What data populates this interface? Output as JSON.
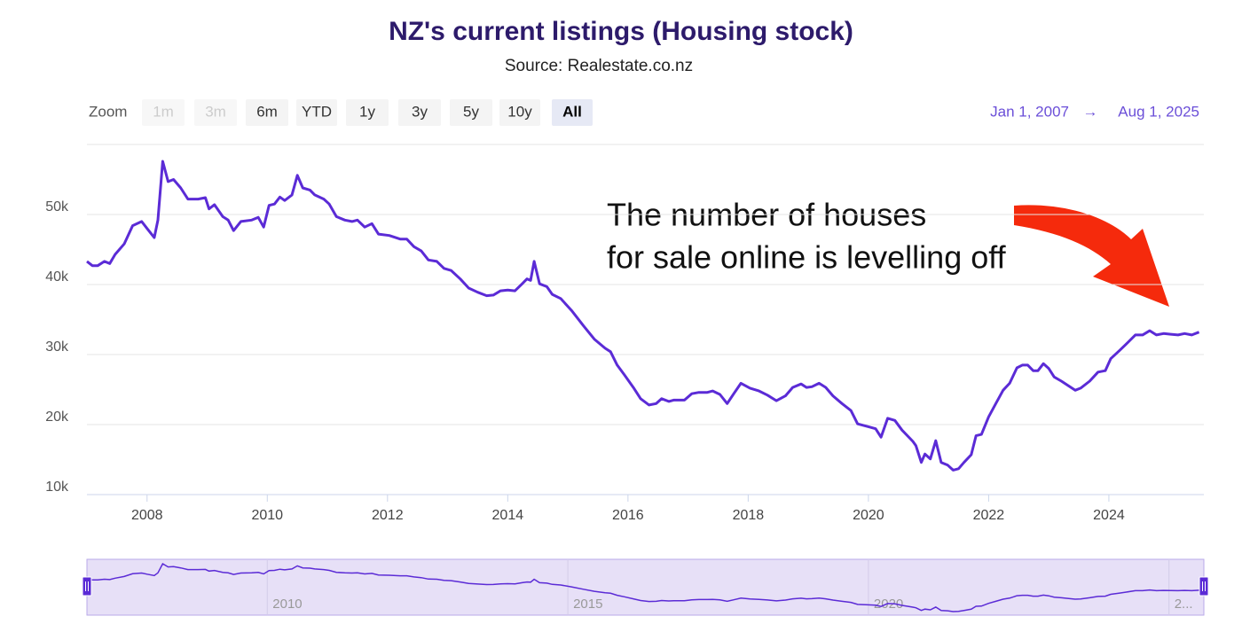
{
  "chart_data": {
    "type": "line",
    "title": "NZ's current listings (Housing stock)",
    "subtitle": "Source: Realestate.co.nz",
    "zoom": {
      "label": "Zoom",
      "buttons": [
        {
          "text": "1m",
          "enabled": false,
          "active": false
        },
        {
          "text": "3m",
          "enabled": false,
          "active": false
        },
        {
          "text": "6m",
          "enabled": true,
          "active": false
        },
        {
          "text": "YTD",
          "enabled": true,
          "active": false
        },
        {
          "text": "1y",
          "enabled": true,
          "active": false
        },
        {
          "text": "3y",
          "enabled": true,
          "active": false
        },
        {
          "text": "5y",
          "enabled": true,
          "active": false
        },
        {
          "text": "10y",
          "enabled": true,
          "active": false
        },
        {
          "text": "All",
          "enabled": true,
          "active": true
        }
      ]
    },
    "range": {
      "start": "Jan 1, 2007",
      "arrow": "→",
      "end": "Aug 1, 2025"
    },
    "annotation": [
      "The number of houses",
      "for sale online is levelling off"
    ],
    "color": "#5b2bd6",
    "x": [
      2007.0,
      2007.09,
      2007.18,
      2007.29,
      2007.38,
      2007.47,
      2007.62,
      2007.76,
      2007.91,
      2008.0,
      2008.12,
      2008.18,
      2008.26,
      2008.35,
      2008.44,
      2008.56,
      2008.68,
      2008.85,
      2008.97,
      2009.03,
      2009.12,
      2009.26,
      2009.35,
      2009.44,
      2009.56,
      2009.74,
      2009.85,
      2009.94,
      2010.03,
      2010.12,
      2010.21,
      2010.29,
      2010.41,
      2010.5,
      2010.59,
      2010.71,
      2010.79,
      2010.94,
      2011.03,
      2011.15,
      2011.29,
      2011.41,
      2011.5,
      2011.62,
      2011.74,
      2011.85,
      2012.03,
      2012.21,
      2012.32,
      2012.44,
      2012.56,
      2012.68,
      2012.82,
      2012.94,
      2013.06,
      2013.21,
      2013.35,
      2013.5,
      2013.65,
      2013.76,
      2013.88,
      2014.0,
      2014.12,
      2014.24,
      2014.32,
      2014.38,
      2014.44,
      2014.53,
      2014.65,
      2014.74,
      2014.88,
      2015.06,
      2015.26,
      2015.44,
      2015.62,
      2015.71,
      2015.82,
      2015.94,
      2016.09,
      2016.21,
      2016.35,
      2016.47,
      2016.56,
      2016.68,
      2016.76,
      2016.94,
      2017.06,
      2017.18,
      2017.32,
      2017.41,
      2017.53,
      2017.65,
      2017.76,
      2017.88,
      2018.03,
      2018.18,
      2018.32,
      2018.47,
      2018.62,
      2018.74,
      2018.88,
      2018.97,
      2019.06,
      2019.18,
      2019.29,
      2019.41,
      2019.56,
      2019.71,
      2019.82,
      2020.0,
      2020.12,
      2020.21,
      2020.32,
      2020.44,
      2020.56,
      2020.74,
      2020.79,
      2020.88,
      2020.94,
      2021.03,
      2021.12,
      2021.21,
      2021.32,
      2021.41,
      2021.5,
      2021.59,
      2021.71,
      2021.79,
      2021.88,
      2022.0,
      2022.12,
      2022.24,
      2022.35,
      2022.47,
      2022.56,
      2022.65,
      2022.74,
      2022.82,
      2022.91,
      2023.0,
      2023.09,
      2023.21,
      2023.35,
      2023.44,
      2023.53,
      2023.68,
      2023.82,
      2023.94,
      2024.03,
      2024.18,
      2024.29,
      2024.44,
      2024.56,
      2024.68,
      2024.79,
      2024.91,
      2025.03,
      2025.15,
      2025.26,
      2025.38,
      2025.5
    ],
    "values": [
      43300,
      42700,
      42700,
      43300,
      43000,
      44300,
      45800,
      48400,
      49000,
      48000,
      46700,
      49200,
      57600,
      54700,
      55000,
      53800,
      52200,
      52200,
      52400,
      50800,
      51400,
      49700,
      49200,
      47700,
      49000,
      49200,
      49600,
      48200,
      51300,
      51500,
      52500,
      52000,
      52800,
      55600,
      53800,
      53500,
      52800,
      52200,
      51500,
      49700,
      49200,
      49000,
      49200,
      48200,
      48700,
      47200,
      47000,
      46500,
      46500,
      45400,
      44800,
      43500,
      43300,
      42300,
      42000,
      40800,
      39500,
      38900,
      38400,
      38500,
      39100,
      39200,
      39100,
      40100,
      40800,
      40600,
      43300,
      40100,
      39700,
      38600,
      38000,
      36300,
      34100,
      32200,
      30900,
      30400,
      28500,
      27100,
      25300,
      23700,
      22800,
      23000,
      23700,
      23300,
      23500,
      23500,
      24400,
      24600,
      24600,
      24800,
      24300,
      23000,
      24400,
      25900,
      25200,
      24800,
      24200,
      23400,
      24100,
      25300,
      25800,
      25300,
      25400,
      25900,
      25300,
      24100,
      23000,
      22000,
      20100,
      19700,
      19400,
      18200,
      20900,
      20600,
      19200,
      17600,
      17000,
      14600,
      15800,
      15100,
      17700,
      14600,
      14200,
      13500,
      13700,
      14600,
      15700,
      18400,
      18600,
      21100,
      23000,
      24900,
      25900,
      28100,
      28500,
      28500,
      27700,
      27700,
      28700,
      28000,
      26800,
      26200,
      25400,
      24900,
      25200,
      26200,
      27500,
      27700,
      29400,
      30600,
      31500,
      32800,
      32800,
      33400,
      32800,
      33000,
      32900,
      32800,
      33000,
      32800,
      33200
    ],
    "xlim": [
      2007,
      2025.58
    ],
    "xticks": [
      2008,
      2010,
      2012,
      2014,
      2016,
      2018,
      2020,
      2022,
      2024
    ],
    "ylim": [
      10000,
      60000
    ],
    "yticks": [
      {
        "value": 10000,
        "label": "10k"
      },
      {
        "value": 20000,
        "label": "20k"
      },
      {
        "value": 30000,
        "label": "30k"
      },
      {
        "value": 40000,
        "label": "40k"
      },
      {
        "value": 50000,
        "label": "50k"
      }
    ],
    "grid": true,
    "navigator": {
      "xticks": [
        2010,
        2015,
        2020,
        {
          "value": 2025,
          "label": "2..."
        }
      ]
    }
  }
}
